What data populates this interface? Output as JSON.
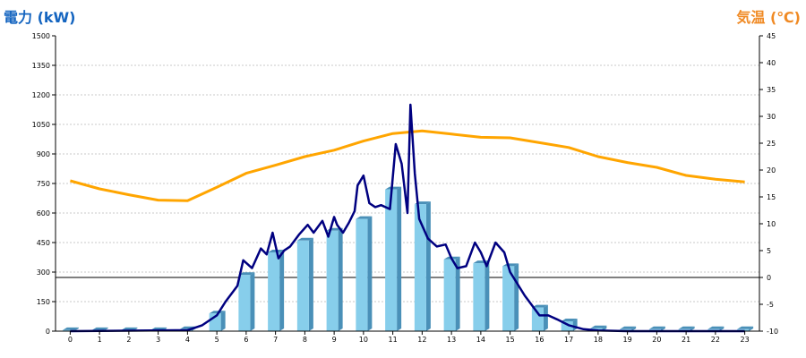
{
  "chart_data": {
    "type": "bar",
    "colors": {
      "power_title": "#1565c0",
      "temp_title": "#f08a24",
      "bar_front": "#87ceeb",
      "bar_side": "#4a90b8",
      "power_line": "#000080",
      "temp_line": "#ffa500",
      "grid": "#c8c8c8"
    },
    "left_axis": {
      "label": "電力 (kW)",
      "min": 0,
      "max": 1500,
      "ticks": [
        "0",
        "150",
        "300",
        "450",
        "600",
        "750",
        "900",
        "1050",
        "1200",
        "1350",
        "1500"
      ]
    },
    "right_axis": {
      "label": "気温 (℃)",
      "min": -10,
      "max": 45,
      "ticks": [
        "-10",
        "-5",
        "0",
        "5",
        "10",
        "15",
        "20",
        "25",
        "30",
        "35",
        "40",
        "45"
      ]
    },
    "categories": [
      "0",
      "1",
      "2",
      "3",
      "4",
      "5",
      "6",
      "7",
      "8",
      "9",
      "10",
      "11",
      "12",
      "13",
      "14",
      "15",
      "16",
      "17",
      "18",
      "19",
      "20",
      "21",
      "22",
      "23"
    ],
    "bars": [
      5,
      5,
      5,
      5,
      10,
      90,
      285,
      400,
      460,
      510,
      570,
      720,
      645,
      365,
      345,
      330,
      120,
      50,
      15,
      10,
      10,
      10,
      10,
      10
    ],
    "power_line": {
      "x": [
        0,
        4,
        4.5,
        5,
        5.3,
        5.7,
        5.9,
        6.2,
        6.5,
        6.7,
        6.9,
        7.1,
        7.3,
        7.5,
        7.8,
        8.1,
        8.3,
        8.6,
        8.8,
        9.0,
        9.1,
        9.3,
        9.5,
        9.7,
        9.8,
        10.0,
        10.2,
        10.4,
        10.6,
        10.9,
        11.1,
        11.3,
        11.5,
        11.6,
        11.75,
        11.9,
        12.2,
        12.5,
        12.8,
        13.0,
        13.2,
        13.5,
        13.8,
        14.0,
        14.2,
        14.5,
        14.8,
        15.0,
        15.5,
        16.0,
        16.3,
        16.6,
        17.0,
        17.5,
        18.0,
        19,
        23
      ],
      "y": [
        0,
        5,
        30,
        80,
        150,
        230,
        360,
        320,
        420,
        390,
        500,
        370,
        410,
        430,
        490,
        540,
        500,
        560,
        480,
        580,
        540,
        500,
        550,
        610,
        740,
        790,
        650,
        630,
        640,
        620,
        950,
        850,
        600,
        1150,
        800,
        570,
        470,
        430,
        440,
        370,
        320,
        330,
        450,
        400,
        330,
        450,
        400,
        300,
        180,
        80,
        80,
        60,
        30,
        10,
        3,
        0,
        0
      ]
    },
    "temp_line": [
      18,
      16.5,
      15.4,
      14.4,
      14.3,
      16.8,
      19.4,
      20.9,
      22.5,
      23.7,
      25.4,
      26.8,
      27.3,
      26.7,
      26.1,
      26.0,
      25.1,
      24.2,
      22.5,
      21.4,
      20.5,
      19.0,
      18.3,
      17.8
    ],
    "grid": true
  }
}
